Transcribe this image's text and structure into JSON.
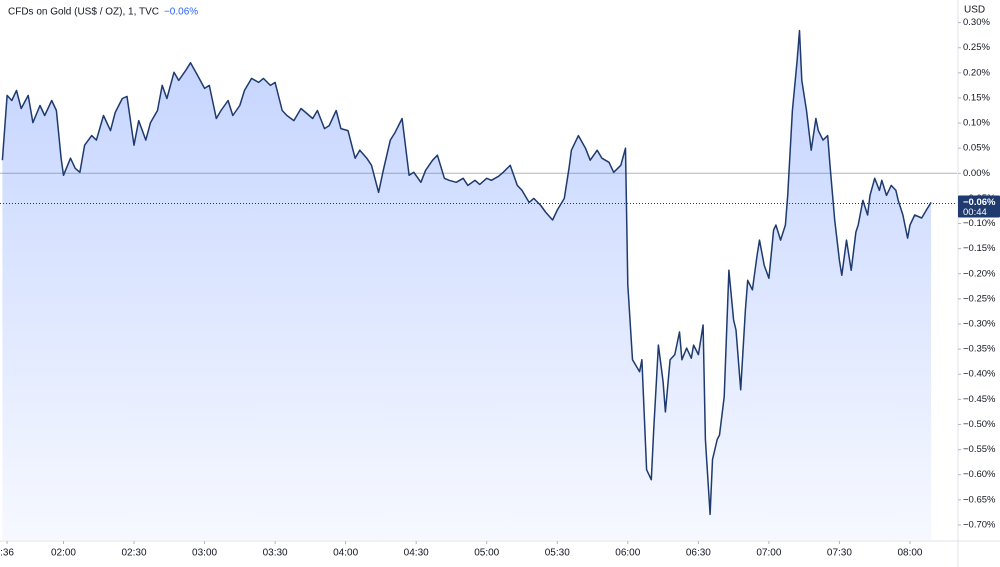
{
  "chart_data": {
    "type": "area",
    "title": "CFDs on Gold (US$ / OZ), 1, TVC",
    "header_change": "−0.06%",
    "y_unit": "USD",
    "last_price": {
      "value": -0.06,
      "label": "−0.06%"
    },
    "countdown": "00:44",
    "color": "#1e3a6e",
    "fill_color": "#2962ff",
    "baseline": 0,
    "grid": false,
    "xlim": [
      "01:33",
      "08:20"
    ],
    "ylim": [
      -0.73,
      0.345
    ],
    "xticks": [
      {
        "value": "01:36",
        "label": ":36"
      },
      "02:00",
      "02:30",
      "03:00",
      "03:30",
      "04:00",
      "04:30",
      "05:00",
      "05:30",
      "06:00",
      "06:30",
      "07:00",
      "07:30",
      "08:00"
    ],
    "yticks": [
      {
        "value": 0.3,
        "label": "0.30%"
      },
      {
        "value": 0.25,
        "label": "0.25%"
      },
      {
        "value": 0.2,
        "label": "0.20%"
      },
      {
        "value": 0.15,
        "label": "0.15%"
      },
      {
        "value": 0.1,
        "label": "0.10%"
      },
      {
        "value": 0.05,
        "label": "0.05%"
      },
      {
        "value": 0,
        "label": "0.00%"
      },
      {
        "value": -0.05,
        "label": "−0.05%"
      },
      {
        "value": -0.1,
        "label": "−0.10%"
      },
      {
        "value": -0.15,
        "label": "−0.15%"
      },
      {
        "value": -0.2,
        "label": "−0.20%"
      },
      {
        "value": -0.25,
        "label": "−0.25%"
      },
      {
        "value": -0.3,
        "label": "−0.30%"
      },
      {
        "value": -0.35,
        "label": "−0.35%"
      },
      {
        "value": -0.4,
        "label": "−0.40%"
      },
      {
        "value": -0.45,
        "label": "−0.45%"
      },
      {
        "value": -0.5,
        "label": "−0.50%"
      },
      {
        "value": -0.55,
        "label": "−0.55%"
      },
      {
        "value": -0.6,
        "label": "−0.60%"
      },
      {
        "value": -0.65,
        "label": "−0.65%"
      },
      {
        "value": -0.7,
        "label": "−0.70%"
      }
    ],
    "x": [
      "01:34",
      "01:36",
      "01:38",
      "01:40",
      "01:42",
      "01:45",
      "01:47",
      "01:50",
      "01:52",
      "01:55",
      "01:57",
      "01:59",
      "02:00",
      "02:03",
      "02:05",
      "02:07",
      "02:09",
      "02:12",
      "02:14",
      "02:17",
      "02:20",
      "02:22",
      "02:25",
      "02:27",
      "02:30",
      "02:32",
      "02:35",
      "02:37",
      "02:40",
      "02:42",
      "02:44",
      "02:47",
      "02:49",
      "02:52",
      "02:54",
      "02:57",
      "03:00",
      "03:02",
      "03:05",
      "03:07",
      "03:10",
      "03:12",
      "03:15",
      "03:17",
      "03:20",
      "03:23",
      "03:25",
      "03:28",
      "03:30",
      "03:33",
      "03:35",
      "03:38",
      "03:41",
      "03:43",
      "03:46",
      "03:48",
      "03:51",
      "03:53",
      "03:56",
      "03:58",
      "04:01",
      "04:04",
      "04:06",
      "04:09",
      "04:11",
      "04:14",
      "04:16",
      "04:19",
      "04:21",
      "04:24",
      "04:27",
      "04:29",
      "04:32",
      "04:34",
      "04:37",
      "04:39",
      "04:42",
      "04:44",
      "04:47",
      "04:50",
      "04:52",
      "04:55",
      "04:57",
      "05:00",
      "05:02",
      "05:05",
      "05:07",
      "05:10",
      "05:13",
      "05:15",
      "05:18",
      "05:20",
      "05:23",
      "05:25",
      "05:28",
      "05:30",
      "05:33",
      "05:35",
      "05:36",
      "05:39",
      "05:42",
      "05:44",
      "05:47",
      "05:49",
      "05:52",
      "05:54",
      "05:57",
      "05:59",
      "06:00",
      "06:02",
      "06:05",
      "06:06",
      "06:08",
      "06:10",
      "06:11",
      "06:13",
      "06:15",
      "06:16",
      "06:18",
      "06:20",
      "06:22",
      "06:23",
      "06:25",
      "06:27",
      "06:28",
      "06:30",
      "06:32",
      "06:33",
      "06:35",
      "06:36",
      "06:38",
      "06:39",
      "06:41",
      "06:43",
      "06:45",
      "06:46",
      "06:48",
      "06:50",
      "06:51",
      "06:53",
      "06:55",
      "06:56",
      "06:58",
      "07:00",
      "07:02",
      "07:03",
      "07:05",
      "07:07",
      "07:08",
      "07:10",
      "07:12",
      "07:13",
      "07:14",
      "07:16",
      "07:18",
      "07:20",
      "07:21",
      "07:23",
      "07:25",
      "07:26",
      "07:28",
      "07:30",
      "07:31",
      "07:33",
      "07:35",
      "07:37",
      "07:38",
      "07:40",
      "07:42",
      "07:43",
      "07:45",
      "07:47",
      "07:48",
      "07:50",
      "07:52",
      "07:54",
      "07:55",
      "07:57",
      "07:59",
      "08:00",
      "08:02",
      "08:05",
      "08:07",
      "08:09"
    ],
    "values": [
      0.026,
      0.155,
      0.145,
      0.165,
      0.129,
      0.155,
      0.101,
      0.135,
      0.115,
      0.145,
      0.125,
      0.03,
      -0.004,
      0.03,
      0.01,
      0.002,
      0.056,
      0.075,
      0.066,
      0.115,
      0.085,
      0.121,
      0.149,
      0.153,
      0.056,
      0.105,
      0.066,
      0.101,
      0.125,
      0.175,
      0.149,
      0.201,
      0.185,
      0.205,
      0.22,
      0.195,
      0.169,
      0.175,
      0.109,
      0.125,
      0.145,
      0.115,
      0.135,
      0.165,
      0.189,
      0.181,
      0.189,
      0.175,
      0.181,
      0.125,
      0.115,
      0.105,
      0.129,
      0.121,
      0.109,
      0.125,
      0.089,
      0.095,
      0.125,
      0.089,
      0.085,
      0.03,
      0.046,
      0.03,
      0.016,
      -0.038,
      0.006,
      0.066,
      0.081,
      0.109,
      -0.004,
      0.002,
      -0.018,
      0.006,
      0.026,
      0.036,
      -0.01,
      -0.014,
      -0.018,
      -0.01,
      -0.024,
      -0.014,
      -0.022,
      -0.01,
      -0.014,
      -0.006,
      0.002,
      0.016,
      -0.024,
      -0.034,
      -0.058,
      -0.05,
      -0.064,
      -0.077,
      -0.093,
      -0.073,
      -0.05,
      0.01,
      0.046,
      0.075,
      0.05,
      0.026,
      0.046,
      0.03,
      0.022,
      0.002,
      0.016,
      0.05,
      -0.222,
      -0.371,
      -0.395,
      -0.371,
      -0.59,
      -0.61,
      -0.511,
      -0.342,
      -0.415,
      -0.475,
      -0.371,
      -0.361,
      -0.316,
      -0.371,
      -0.348,
      -0.368,
      -0.342,
      -0.361,
      -0.302,
      -0.53,
      -0.679,
      -0.57,
      -0.53,
      -0.521,
      -0.445,
      -0.193,
      -0.292,
      -0.312,
      -0.431,
      -0.272,
      -0.213,
      -0.232,
      -0.163,
      -0.133,
      -0.183,
      -0.209,
      -0.113,
      -0.103,
      -0.133,
      -0.103,
      -0.044,
      0.125,
      0.224,
      0.284,
      0.185,
      0.125,
      0.046,
      0.109,
      0.085,
      0.066,
      0.075,
      0.016,
      -0.093,
      -0.173,
      -0.203,
      -0.133,
      -0.193,
      -0.117,
      -0.103,
      -0.054,
      -0.083,
      -0.044,
      -0.01,
      -0.034,
      -0.014,
      -0.044,
      -0.024,
      -0.034,
      -0.054,
      -0.083,
      -0.129,
      -0.103,
      -0.083,
      -0.089,
      -0.073,
      -0.058
    ]
  }
}
